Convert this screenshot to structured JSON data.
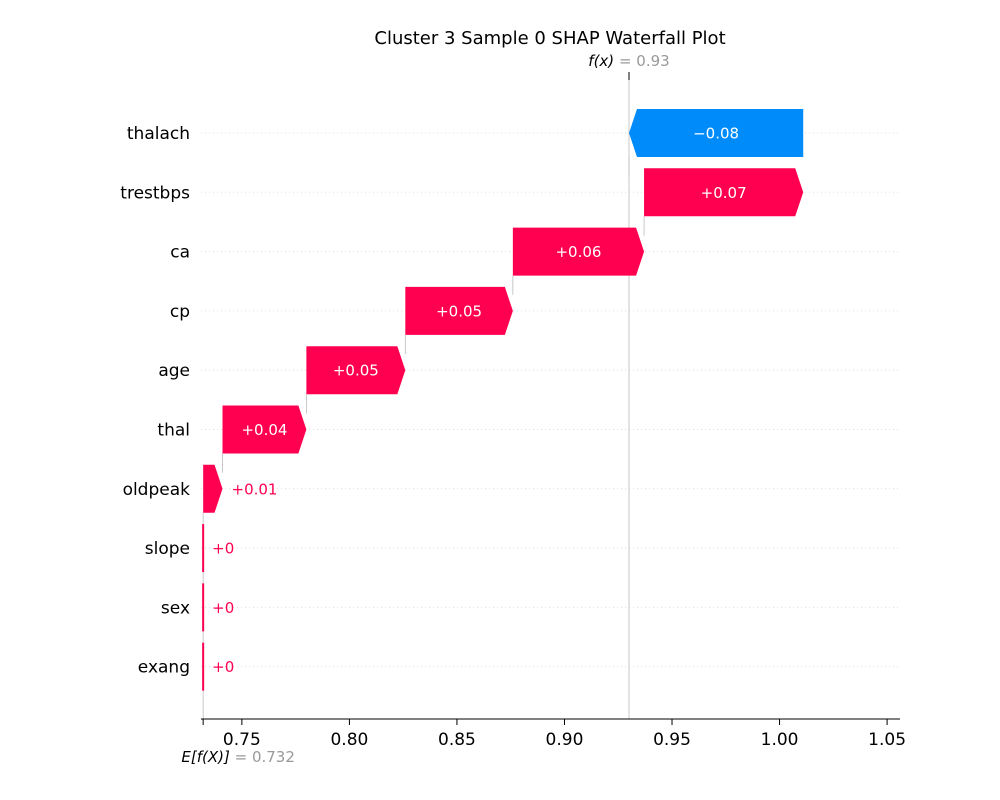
{
  "chart_data": {
    "type": "waterfall",
    "title": "Cluster 3 Sample 0 SHAP Waterfall Plot",
    "fx": {
      "prefix": "f(x)",
      "value_text": "= 0.93",
      "value": 0.93
    },
    "base": {
      "prefix": "E[f(X)]",
      "value_text": "= 0.732",
      "value": 0.732
    },
    "features": [
      {
        "name": "thalach",
        "label": "−0.08",
        "start": 1.011,
        "end": 0.93
      },
      {
        "name": "trestbps",
        "label": "+0.07",
        "start": 0.937,
        "end": 1.011
      },
      {
        "name": "ca",
        "label": "+0.06",
        "start": 0.876,
        "end": 0.937
      },
      {
        "name": "cp",
        "label": "+0.05",
        "start": 0.826,
        "end": 0.876
      },
      {
        "name": "age",
        "label": "+0.05",
        "start": 0.78,
        "end": 0.826
      },
      {
        "name": "thal",
        "label": "+0.04",
        "start": 0.741,
        "end": 0.78
      },
      {
        "name": "oldpeak",
        "label": "+0.01",
        "start": 0.732,
        "end": 0.741
      },
      {
        "name": "slope",
        "label": "+0",
        "start": 0.732,
        "end": 0.732
      },
      {
        "name": "sex",
        "label": "+0",
        "start": 0.732,
        "end": 0.732
      },
      {
        "name": "exang",
        "label": "+0",
        "start": 0.732,
        "end": 0.732
      }
    ],
    "x_ticks": [
      {
        "value": 0.75,
        "label": "0.75"
      },
      {
        "value": 0.8,
        "label": "0.80"
      },
      {
        "value": 0.85,
        "label": "0.85"
      },
      {
        "value": 0.9,
        "label": "0.90"
      },
      {
        "value": 0.95,
        "label": "0.95"
      },
      {
        "value": 1.0,
        "label": "1.00"
      },
      {
        "value": 1.05,
        "label": "1.05"
      }
    ],
    "xlim": [
      0.731,
      1.056
    ],
    "colors": {
      "positive": "#ff0051",
      "negative": "#008bfb",
      "muted": "#999999",
      "text": "#000000"
    }
  }
}
